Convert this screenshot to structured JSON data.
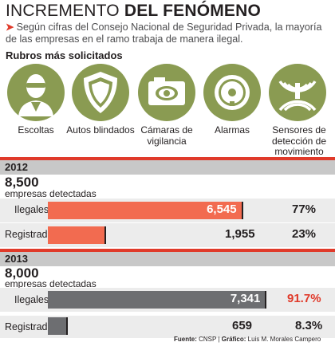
{
  "header": {
    "title_light": "INCREMENTO",
    "title_bold": "DEL FENÓMENO",
    "subtitle": "Según cifras del Consejo Nacional de Seguridad Privada, la mayoría de las empresas en el ramo trabaja de manera ilegal."
  },
  "rubros": {
    "heading": "Rubros más solicitados",
    "items": [
      {
        "label": "Escoltas",
        "icon": "bodyguard-icon"
      },
      {
        "label": "Autos blindados",
        "icon": "shield-icon"
      },
      {
        "label": "Cámaras de vigilancia",
        "icon": "camera-icon"
      },
      {
        "label": "Alarmas",
        "icon": "alarm-bell-icon"
      },
      {
        "label": "Sensores de detección de movimiento",
        "icon": "motion-sensor-icon"
      }
    ],
    "icon_color": "#8a9b52"
  },
  "chart_data": {
    "type": "bar",
    "groups": [
      {
        "year": "2012",
        "total": "8,500",
        "total_label": "empresas detectadas",
        "rows": [
          {
            "label": "Ilegales",
            "value": 6545,
            "display": "6,545",
            "pct": "77%"
          },
          {
            "label": "Registradas",
            "value": 1955,
            "display": "1,955",
            "pct": "23%"
          }
        ],
        "color": "#f26b50"
      },
      {
        "year": "2013",
        "total": "8,000",
        "total_label": "empresas detectadas",
        "rows": [
          {
            "label": "Ilegales",
            "value": 7341,
            "display": "7,341",
            "pct": "91.7%",
            "highlight": true
          },
          {
            "label": "Registradas",
            "value": 659,
            "display": "659",
            "pct": "8.3%"
          }
        ],
        "color": "#6d6e71"
      }
    ],
    "xlim": [
      0,
      8000
    ],
    "highlight_color": "#e03a2a"
  },
  "credit": {
    "fuente_label": "Fuente:",
    "fuente": "CNSP",
    "grafico_label": "Gráfico:",
    "grafico": "Luis M. Morales Campero"
  }
}
